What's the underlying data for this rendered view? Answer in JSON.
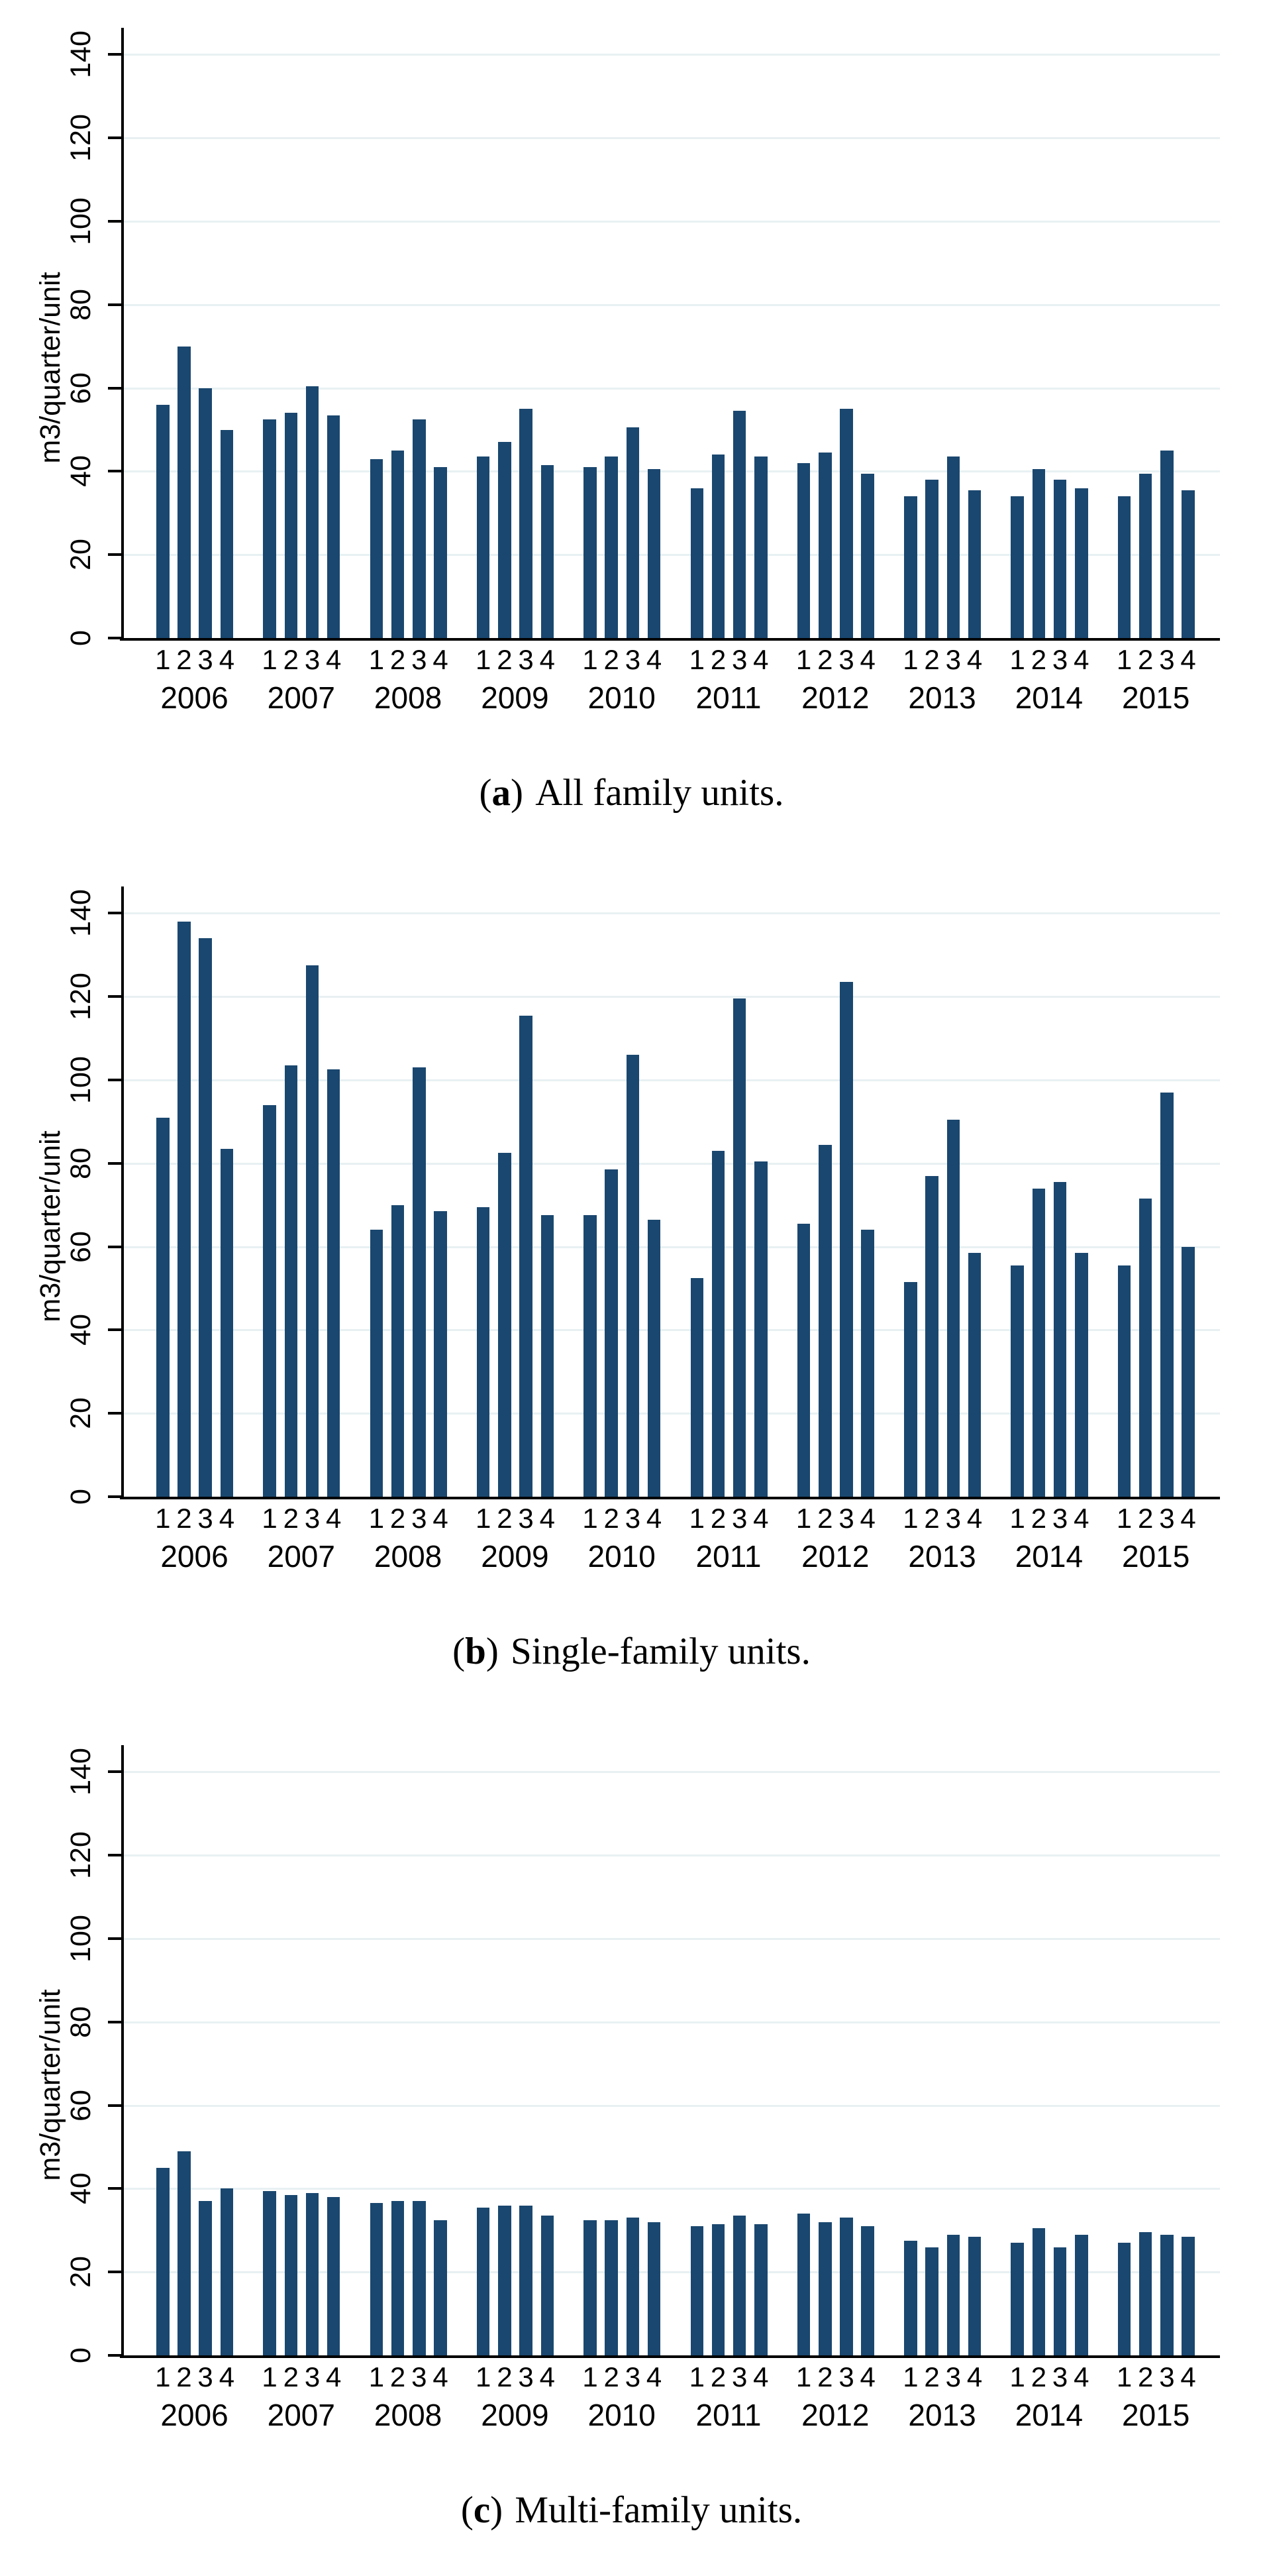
{
  "style": {
    "bar_color": "#1a476f",
    "gridline_color": "#e8f0f2",
    "axis_color": "#000000",
    "background_color": "#ffffff"
  },
  "axis": {
    "y_title": "m3/quarter/unit",
    "y_tick_values": [
      0,
      20,
      40,
      60,
      80,
      100,
      120,
      140
    ],
    "quarter_labels": [
      "1",
      "2",
      "3",
      "4"
    ],
    "years": [
      "2006",
      "2007",
      "2008",
      "2009",
      "2010",
      "2011",
      "2012",
      "2013",
      "2014",
      "2015"
    ]
  },
  "chart_data": [
    {
      "type": "bar",
      "id": "a",
      "caption": {
        "open": "(",
        "letter": "a",
        "close": ")",
        "text": "All family units."
      },
      "ylabel": "m3/quarter/unit",
      "ylim": [
        0,
        140
      ],
      "y_ticks": [
        0,
        20,
        40,
        60,
        80,
        100,
        120,
        140
      ],
      "quarters": [
        "1",
        "2",
        "3",
        "4"
      ],
      "grid": true,
      "legend": "none",
      "series": [
        {
          "year": "2006",
          "values": [
            56,
            70,
            60,
            50
          ]
        },
        {
          "year": "2007",
          "values": [
            52.5,
            54,
            60.5,
            53.5
          ]
        },
        {
          "year": "2008",
          "values": [
            43,
            45,
            52.5,
            41
          ]
        },
        {
          "year": "2009",
          "values": [
            43.5,
            47,
            55,
            41.5
          ]
        },
        {
          "year": "2010",
          "values": [
            41,
            43.5,
            50.5,
            40.5
          ]
        },
        {
          "year": "2011",
          "values": [
            36,
            44,
            54.5,
            43.5
          ]
        },
        {
          "year": "2012",
          "values": [
            42,
            44.5,
            55,
            39.5
          ]
        },
        {
          "year": "2013",
          "values": [
            34,
            38,
            43.5,
            35.5
          ]
        },
        {
          "year": "2014",
          "values": [
            34,
            40.5,
            38,
            36
          ]
        },
        {
          "year": "2015",
          "values": [
            34,
            39.5,
            45,
            35.5
          ]
        }
      ]
    },
    {
      "type": "bar",
      "id": "b",
      "caption": {
        "open": "(",
        "letter": "b",
        "close": ")",
        "text": "Single-family units."
      },
      "ylabel": "m3/quarter/unit",
      "ylim": [
        0,
        140
      ],
      "y_ticks": [
        0,
        20,
        40,
        60,
        80,
        100,
        120,
        140
      ],
      "quarters": [
        "1",
        "2",
        "3",
        "4"
      ],
      "grid": true,
      "legend": "none",
      "series": [
        {
          "year": "2006",
          "values": [
            91,
            138,
            134,
            83.5
          ]
        },
        {
          "year": "2007",
          "values": [
            94,
            103.5,
            127.5,
            102.5
          ]
        },
        {
          "year": "2008",
          "values": [
            64,
            70,
            103,
            68.5
          ]
        },
        {
          "year": "2009",
          "values": [
            69.5,
            82.5,
            115.5,
            67.5
          ]
        },
        {
          "year": "2010",
          "values": [
            67.5,
            78.5,
            106,
            66.5
          ]
        },
        {
          "year": "2011",
          "values": [
            52.5,
            83,
            119.5,
            80.5
          ]
        },
        {
          "year": "2012",
          "values": [
            65.5,
            84.5,
            123.5,
            64
          ]
        },
        {
          "year": "2013",
          "values": [
            51.5,
            77,
            90.5,
            58.5
          ]
        },
        {
          "year": "2014",
          "values": [
            55.5,
            74,
            75.5,
            58.5
          ]
        },
        {
          "year": "2015",
          "values": [
            55.5,
            71.5,
            97,
            60
          ]
        }
      ]
    },
    {
      "type": "bar",
      "id": "c",
      "caption": {
        "open": "(",
        "letter": "c",
        "close": ")",
        "text": "Multi-family units."
      },
      "ylabel": "m3/quarter/unit",
      "ylim": [
        0,
        140
      ],
      "y_ticks": [
        0,
        20,
        40,
        60,
        80,
        100,
        120,
        140
      ],
      "quarters": [
        "1",
        "2",
        "3",
        "4"
      ],
      "grid": true,
      "legend": "none",
      "series": [
        {
          "year": "2006",
          "values": [
            45,
            49,
            37,
            40
          ]
        },
        {
          "year": "2007",
          "values": [
            39.5,
            38.5,
            39,
            38
          ]
        },
        {
          "year": "2008",
          "values": [
            36.5,
            37,
            37,
            32.5
          ]
        },
        {
          "year": "2009",
          "values": [
            35.5,
            36,
            36,
            33.5
          ]
        },
        {
          "year": "2010",
          "values": [
            32.5,
            32.5,
            33,
            32
          ]
        },
        {
          "year": "2011",
          "values": [
            31,
            31.5,
            33.5,
            31.5
          ]
        },
        {
          "year": "2012",
          "values": [
            34,
            32,
            33,
            31
          ]
        },
        {
          "year": "2013",
          "values": [
            27.5,
            26,
            29,
            28.5
          ]
        },
        {
          "year": "2014",
          "values": [
            27,
            30.5,
            26,
            29
          ]
        },
        {
          "year": "2015",
          "values": [
            27,
            29.5,
            29,
            28.5
          ]
        }
      ]
    }
  ]
}
